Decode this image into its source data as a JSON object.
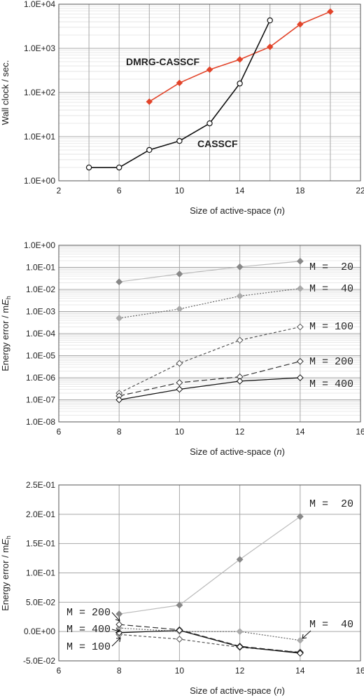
{
  "chart_data": [
    {
      "type": "line",
      "yscale": "log",
      "xlim": [
        2,
        22
      ],
      "xticks": [
        2,
        4,
        6,
        8,
        10,
        12,
        14,
        16,
        18,
        20,
        22
      ],
      "xtick_labels": [
        "2",
        "",
        "6",
        "",
        "10",
        "",
        "14",
        "",
        "18",
        "",
        "22"
      ],
      "ylim": [
        1,
        10000
      ],
      "yticks": [
        1,
        10,
        100,
        1000,
        10000
      ],
      "ytick_labels": [
        "1.0E+00",
        "1.0E+01",
        "1.0E+02",
        "1.0E+03",
        "1.0E+04"
      ],
      "xlabel": "Size of active-space (",
      "xlabel_italic": "n",
      "xlabel_close": ")",
      "ylabel": "Wall clock / sec.",
      "grid": true,
      "series": [
        {
          "name": "DMRG-CASSCF",
          "color": "#e2442a",
          "marker": "diamond",
          "filled": true,
          "dash": "solid",
          "x": [
            8,
            10,
            12,
            14,
            16,
            18,
            20
          ],
          "y": [
            62,
            165,
            330,
            560,
            1080,
            3500,
            6800
          ]
        },
        {
          "name": "CASSCF",
          "color": "#111111",
          "marker": "circle",
          "filled": false,
          "dash": "solid",
          "x": [
            4,
            6,
            8,
            10,
            12,
            14,
            16
          ],
          "y": [
            2,
            2,
            5,
            8,
            20,
            160,
            4300
          ]
        }
      ]
    },
    {
      "type": "line",
      "yscale": "log",
      "xlim": [
        6,
        16
      ],
      "xticks": [
        6,
        8,
        10,
        12,
        14,
        16
      ],
      "xtick_labels": [
        "6",
        "8",
        "10",
        "12",
        "14",
        "16"
      ],
      "ylim": [
        1e-08,
        1
      ],
      "yticks": [
        1e-08,
        1e-07,
        1e-06,
        1e-05,
        0.0001,
        0.001,
        0.01,
        0.1,
        1
      ],
      "ytick_labels": [
        "1.0E-08",
        "1.0E-07",
        "1.0E-06",
        "1.0E-05",
        "1.0E-04",
        "1.0E-03",
        "1.0E-02",
        "1.0E-01",
        "1.0E+00"
      ],
      "xlabel": "Size of active-space (",
      "xlabel_italic": "n",
      "xlabel_close": ")",
      "ylabel": "Energy error / m",
      "ylabel_italic": "E",
      "ylabel_sub": "h",
      "grid": true,
      "series": [
        {
          "name": "M =  20",
          "color": "#bbbbbb",
          "marker": "diamond",
          "filled": true,
          "fill": "#888888",
          "dash": "solid",
          "x": [
            8,
            10,
            12,
            14
          ],
          "y": [
            0.022,
            0.05,
            0.105,
            0.19
          ]
        },
        {
          "name": "M =  40",
          "color": "#666666",
          "marker": "diamond",
          "filled": true,
          "fill": "#aaaaaa",
          "dash": "2,2",
          "x": [
            8,
            10,
            12,
            14
          ],
          "y": [
            0.0005,
            0.0013,
            0.005,
            0.011
          ]
        },
        {
          "name": "M = 100",
          "color": "#555555",
          "marker": "diamond",
          "filled": false,
          "dash": "4,3",
          "x": [
            8,
            10,
            12,
            14
          ],
          "y": [
            2e-07,
            4.5e-06,
            5e-05,
            0.0002
          ]
        },
        {
          "name": "M = 200",
          "color": "#333333",
          "marker": "diamond",
          "filled": false,
          "dash": "8,4",
          "x": [
            8,
            10,
            12,
            14
          ],
          "y": [
            1.5e-07,
            6e-07,
            1.1e-06,
            5.5e-06
          ]
        },
        {
          "name": "M = 400",
          "color": "#111111",
          "marker": "diamond",
          "filled": false,
          "dash": "solid",
          "x": [
            8,
            10,
            12,
            14
          ],
          "y": [
            1e-07,
            3e-07,
            7e-07,
            1e-06
          ]
        }
      ]
    },
    {
      "type": "line",
      "yscale": "linear",
      "xlim": [
        6,
        16
      ],
      "xticks": [
        6,
        8,
        10,
        12,
        14,
        16
      ],
      "xtick_labels": [
        "6",
        "8",
        "10",
        "12",
        "14",
        "16"
      ],
      "ylim": [
        -0.05,
        0.25
      ],
      "yticks": [
        -0.05,
        0,
        0.05,
        0.1,
        0.15,
        0.2,
        0.25
      ],
      "ytick_labels": [
        "-5.0E-02",
        "0.0E+00",
        "5.0E-02",
        "1.0E-01",
        "1.5E-01",
        "2.0E-01",
        "2.5E-01"
      ],
      "xlabel": "Size of active-space (",
      "xlabel_italic": "n",
      "xlabel_close": ")",
      "ylabel": "Energy error / m",
      "ylabel_italic": "E",
      "ylabel_sub": "h",
      "grid": true,
      "series": [
        {
          "name": "M =  20",
          "color": "#bbbbbb",
          "marker": "diamond",
          "filled": true,
          "fill": "#888888",
          "dash": "solid",
          "x": [
            8,
            10,
            12,
            14
          ],
          "y": [
            0.03,
            0.045,
            0.123,
            0.196
          ]
        },
        {
          "name": "M =  40",
          "color": "#666666",
          "marker": "diamond",
          "filled": true,
          "fill": "#aaaaaa",
          "dash": "2,2",
          "x": [
            8,
            10,
            12,
            14
          ],
          "y": [
            0.006,
            0.0,
            0.0,
            -0.015
          ]
        },
        {
          "name": "M = 100",
          "color": "#555555",
          "marker": "diamond",
          "filled": false,
          "dash": "4,3",
          "x": [
            8,
            10,
            12,
            14
          ],
          "y": [
            -0.005,
            -0.013,
            -0.027,
            -0.035
          ]
        },
        {
          "name": "M = 200",
          "color": "#333333",
          "marker": "diamond",
          "filled": false,
          "dash": "8,4",
          "x": [
            8,
            10,
            12,
            14
          ],
          "y": [
            0.012,
            0.003,
            -0.025,
            -0.036
          ]
        },
        {
          "name": "M = 400",
          "color": "#111111",
          "marker": "diamond",
          "filled": false,
          "dash": "solid",
          "x": [
            8,
            10,
            12,
            14
          ],
          "y": [
            -0.002,
            0.002,
            -0.026,
            -0.037
          ]
        }
      ]
    }
  ]
}
